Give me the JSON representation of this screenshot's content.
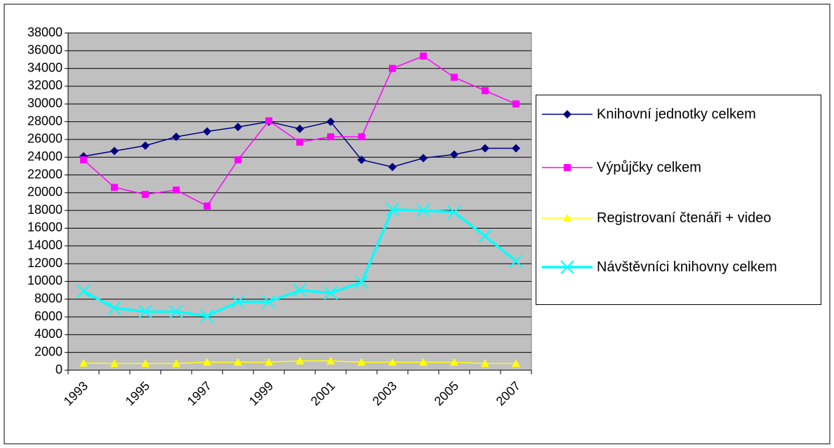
{
  "chart_data": {
    "type": "line",
    "categories": [
      "1993",
      null,
      "1995",
      null,
      "1997",
      null,
      "1999",
      null,
      "2001",
      null,
      "2003",
      null,
      "2005",
      null,
      "2007"
    ],
    "series": [
      {
        "name": "Knihovní jednotky celkem",
        "color": "#000080",
        "marker": "diamond",
        "line_width": 1.5,
        "values": [
          24100,
          24700,
          25300,
          26300,
          26900,
          27400,
          28000,
          27200,
          28000,
          23700,
          22900,
          23900,
          24300,
          25000,
          25000
        ]
      },
      {
        "name": "Výpůjčky celkem",
        "color": "#ff00ff",
        "marker": "square",
        "line_width": 1.5,
        "values": [
          23700,
          20600,
          19800,
          20300,
          18500,
          23700,
          28100,
          25700,
          26300,
          26300,
          34000,
          35400,
          33000,
          31500,
          30000
        ]
      },
      {
        "name": "Registrovaní čtenáři + video",
        "color": "#ffff00",
        "marker": "triangle",
        "line_width": 1.5,
        "values": [
          800,
          750,
          750,
          750,
          900,
          900,
          900,
          1050,
          1050,
          900,
          900,
          900,
          900,
          750,
          750
        ]
      },
      {
        "name": "Návštěvníci knihovny celkem",
        "color": "#00ffff",
        "marker": "x",
        "line_width": 3.5,
        "values": [
          8900,
          7000,
          6600,
          6600,
          6100,
          7700,
          7700,
          9000,
          8700,
          9900,
          18100,
          18000,
          17800,
          15100,
          12300
        ]
      }
    ],
    "ylim": [
      0,
      38000
    ],
    "yticks": [
      0,
      2000,
      4000,
      6000,
      8000,
      10000,
      12000,
      14000,
      16000,
      18000,
      20000,
      22000,
      24000,
      26000,
      28000,
      30000,
      32000,
      34000,
      36000,
      38000
    ],
    "grid": true,
    "legend": "right"
  }
}
